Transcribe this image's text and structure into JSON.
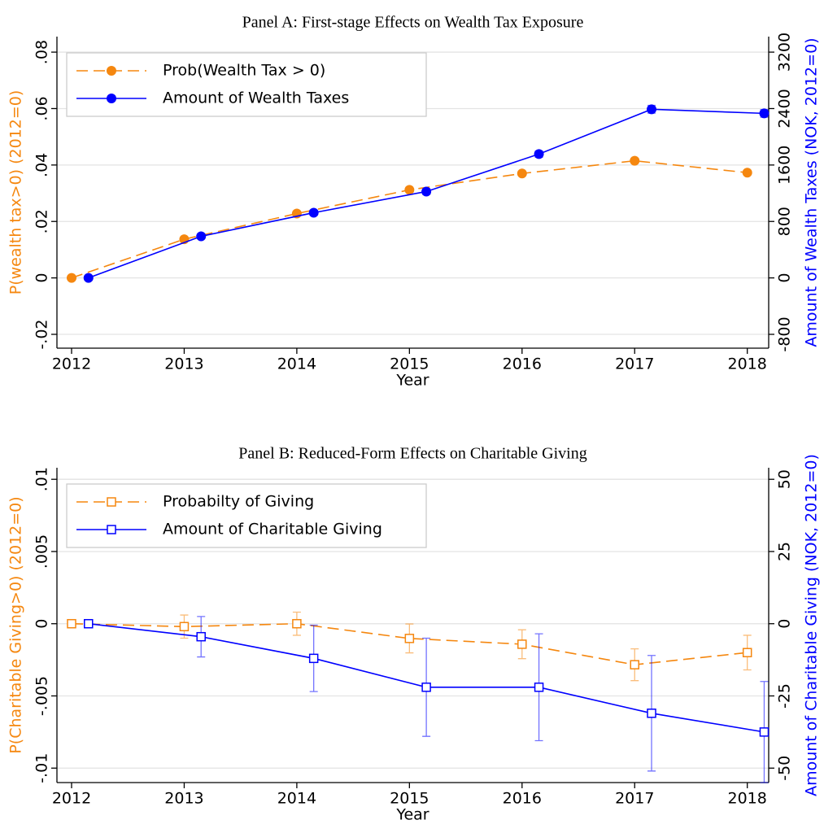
{
  "chart_data": [
    {
      "type": "line",
      "title": "Panel A: First-stage Effects on Wealth Tax Exposure",
      "xlabel": "Year",
      "ylabel": "P(wealth tax>0) (2012=0)",
      "y2label": "Amount of Wealth Taxes (NOK, 2012=0)",
      "xlim": [
        2011.87,
        2018.19
      ],
      "xticks": [
        2012,
        2013,
        2014,
        2015,
        2016,
        2017,
        2018
      ],
      "ylim": [
        -0.0249,
        0.0855
      ],
      "yticks": [
        {
          "value": 0.08,
          "label": ".08"
        },
        {
          "value": 0.06,
          "label": ".06"
        },
        {
          "value": 0.04,
          "label": ".04"
        },
        {
          "value": 0.02,
          "label": ".02"
        },
        0,
        {
          "value": -0.02,
          "label": "-.02"
        }
      ],
      "y2lim": [
        -996,
        3420
      ],
      "y2ticks": [
        3200,
        2400,
        1600,
        800,
        0,
        -800
      ],
      "grid": true,
      "legend": "top-left",
      "series": [
        {
          "name": "Prob(Wealth Tax > 0)",
          "color": "#f5870f",
          "dash": true,
          "marker": "circle",
          "axis": "y",
          "x": [
            2012,
            2013,
            2014,
            2015,
            2016,
            2017,
            2018
          ],
          "values": [
            0,
            0.0137,
            0.0228,
            0.0312,
            0.037,
            0.0415,
            0.0373
          ]
        },
        {
          "name": "Amount of Wealth Taxes",
          "color": "#0000ff",
          "dash": false,
          "marker": "circle",
          "axis": "y2",
          "x": [
            2012.15,
            2013.15,
            2014.15,
            2015.15,
            2016.15,
            2017.15,
            2018.15
          ],
          "values": [
            0,
            589,
            924,
            1224,
            1755,
            2390,
            2332
          ],
          "errors": [
            0,
            30,
            35,
            40,
            45,
            55,
            55
          ]
        }
      ]
    },
    {
      "type": "line",
      "title": "Panel B: Reduced-Form Effects on Charitable Giving",
      "xlabel": "Year",
      "ylabel": "P(Charitable Giving>0) (2012=0)",
      "y2label": "Amount of Charitable Giving (NOK, 2012=0)",
      "xlim": [
        2011.87,
        2018.19
      ],
      "xticks": [
        2012,
        2013,
        2014,
        2015,
        2016,
        2017,
        2018
      ],
      "ylim": [
        -0.011,
        0.0108
      ],
      "yticks": [
        {
          "value": 0.01,
          "label": ".01"
        },
        {
          "value": 0.005,
          "label": ".005"
        },
        0,
        {
          "value": -0.005,
          "label": "-.005"
        },
        {
          "value": -0.01,
          "label": "-.01"
        }
      ],
      "y2lim": [
        -55,
        54
      ],
      "y2ticks": [
        50,
        25,
        0,
        -25,
        -50
      ],
      "grid": true,
      "legend": "top-left",
      "series": [
        {
          "name": "Probabilty of Giving",
          "color": "#f5870f",
          "dash": true,
          "marker": "square",
          "axis": "y",
          "x": [
            2012,
            2013,
            2014,
            2015,
            2016,
            2017,
            2018
          ],
          "values": [
            0,
            -0.0002,
            0,
            -0.00102,
            -0.00142,
            -0.00284,
            -0.002
          ],
          "errors": [
            0,
            0.0008,
            0.0008,
            0.001,
            0.001,
            0.0011,
            0.0012
          ]
        },
        {
          "name": "Amount of Charitable Giving",
          "color": "#0000ff",
          "dash": false,
          "marker": "square",
          "axis": "y2",
          "x": [
            2012.15,
            2013.15,
            2014.15,
            2015.15,
            2016.15,
            2017.15,
            2018.15
          ],
          "values": [
            0,
            -4.5,
            -12,
            -22,
            -22,
            -31,
            -37.5
          ],
          "errors": [
            0,
            7,
            11.5,
            17,
            18.5,
            20,
            17.5
          ]
        }
      ]
    }
  ]
}
